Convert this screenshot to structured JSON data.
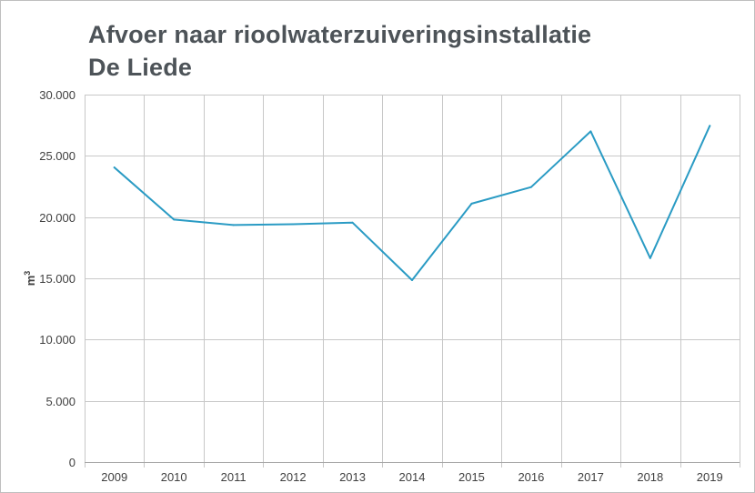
{
  "chart_data": {
    "type": "line",
    "title_lines": [
      "Afvoer naar rioolwaterzuiveringsinstallatie",
      "De Liede"
    ],
    "ylabel": "m",
    "ylabel_superscript": "3",
    "xlabel": "",
    "categories": [
      "2009",
      "2010",
      "2011",
      "2012",
      "2013",
      "2014",
      "2015",
      "2016",
      "2017",
      "2018",
      "2019"
    ],
    "series": [
      {
        "values": [
          24050,
          19800,
          19350,
          19420,
          19550,
          14850,
          21100,
          22450,
          27000,
          16650,
          27450
        ]
      }
    ],
    "ylim": [
      0,
      30000
    ],
    "yticks": [
      0,
      5000,
      10000,
      15000,
      20000,
      25000,
      30000
    ],
    "ytick_labels": [
      "0",
      "5.000",
      "10.000",
      "15.000",
      "20.000",
      "25.000",
      "30.000"
    ],
    "grid": true,
    "line_color": "#2a9bc4",
    "grid_color": "#c8c8c8"
  }
}
